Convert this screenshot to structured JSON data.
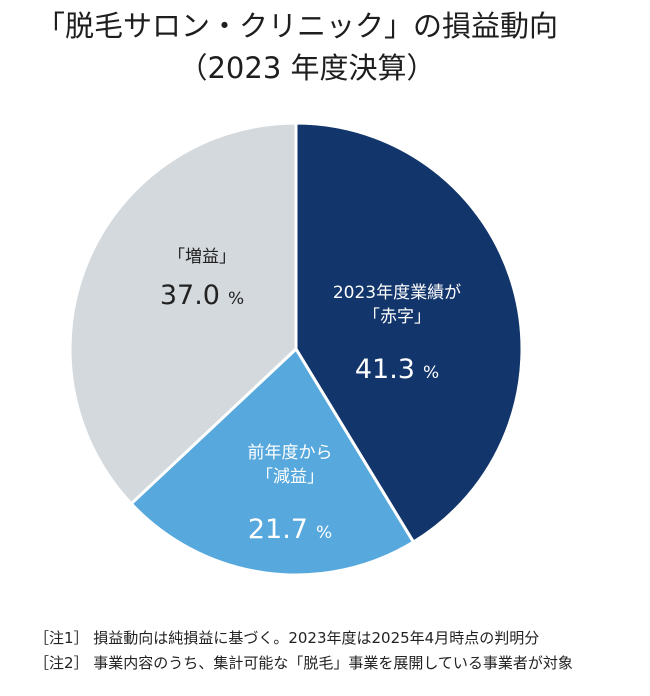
{
  "title_line1": "「脱毛サロン・クリニック」の損益動向",
  "title_line2": "（2023 年度決算）",
  "chart_data": {
    "type": "pie",
    "title": "「脱毛サロン・クリニック」の損益動向（2023 年度決算）",
    "unit": "%",
    "start": "12 o'clock, clockwise",
    "slices": [
      {
        "label_lines": [
          "2023年度業績が",
          "「赤字」"
        ],
        "value": 41.3,
        "value_text": "41.3",
        "color": "#12356b",
        "text_color": "#ffffff"
      },
      {
        "label_lines": [
          "前年度から",
          "「減益」"
        ],
        "value": 21.7,
        "value_text": "21.7",
        "color": "#56a8dd",
        "text_color": "#ffffff"
      },
      {
        "label_lines": [
          "「増益」"
        ],
        "value": 37.0,
        "value_text": "37.0",
        "color": "#d4d9dd",
        "text_color": "#222222"
      }
    ]
  },
  "notes": {
    "note1": "［注1］ 損益動向は純損益に基づく。2023年度は2025年4月時点の判明分",
    "note2": "［注2］ 事業内容のうち、集計可能な「脱毛」事業を展開している事業者が対象"
  }
}
